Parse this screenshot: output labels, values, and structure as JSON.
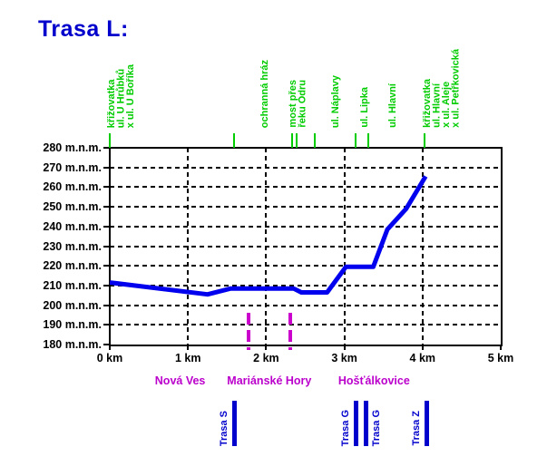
{
  "title": "Trasa L:",
  "colors": {
    "title_blue": "#0000CC",
    "profile_blue": "#0000EE",
    "route_marker_blue": "#0000CC",
    "annotation_green": "#00CC00",
    "boundary_magenta": "#CC00CC",
    "municipality_magenta": "#BB00CC",
    "axis_black": "#000000"
  },
  "chart_data": {
    "type": "line",
    "title": "Trasa L:",
    "xlabel": "km",
    "ylabel": "m.n.m.",
    "xlim": [
      0,
      5
    ],
    "ylim": [
      180,
      280
    ],
    "grid": "dashed",
    "y_axis": [
      {
        "value": 280,
        "label": "280 m.n.m."
      },
      {
        "value": 270,
        "label": "270 m.n.m."
      },
      {
        "value": 260,
        "label": "260 m.n.m."
      },
      {
        "value": 250,
        "label": "250 m.n.m."
      },
      {
        "value": 240,
        "label": "240 m.n.m."
      },
      {
        "value": 230,
        "label": "230 m.n.m."
      },
      {
        "value": 220,
        "label": "220 m.n.m."
      },
      {
        "value": 210,
        "label": "210 m.n.m."
      },
      {
        "value": 200,
        "label": "200 m.n.m."
      },
      {
        "value": 190,
        "label": "190 m.n.m."
      },
      {
        "value": 180,
        "label": "180 m.n.m."
      }
    ],
    "x_axis": [
      {
        "value": 0,
        "label": "0 km"
      },
      {
        "value": 1,
        "label": "1 km"
      },
      {
        "value": 2,
        "label": "2 km"
      },
      {
        "value": 3,
        "label": "3 km"
      },
      {
        "value": 4,
        "label": "4 km"
      },
      {
        "value": 5,
        "label": "5 km"
      }
    ],
    "series": [
      {
        "name": "elevation-profile",
        "x": [
          0,
          1.25,
          1.55,
          2.35,
          2.45,
          2.78,
          3.02,
          3.37,
          3.55,
          3.79,
          4.04
        ],
        "y": [
          211.5,
          205.5,
          208.5,
          208.5,
          206.5,
          206.5,
          219.5,
          219.5,
          238.5,
          249,
          265.5
        ]
      }
    ],
    "annotations": [
      {
        "label": "křižovatka\nul. U Hrůbků\nx ul. U Boříka",
        "ticks_km": [
          0.0
        ],
        "label_km": -0.03
      },
      {
        "label": "ochranná hráz",
        "ticks_km": [
          1.59
        ],
        "label_km": 1.93
      },
      {
        "label": "most přes\nřeku Odru",
        "ticks_km": [
          2.33,
          2.39
        ],
        "label_km": 2.28
      },
      {
        "label": "ul. Náplavy",
        "ticks_km": [
          2.62
        ],
        "label_km": 2.83
      },
      {
        "label": "ul. Lipka",
        "ticks_km": [
          3.14
        ],
        "label_km": 3.2
      },
      {
        "label": "ul. Hlavní",
        "ticks_km": [
          3.31
        ],
        "label_km": 3.56
      },
      {
        "label": "křižovatka\nul. Hlavní\nx ul. Aleje\nx ul. Petřkovická",
        "ticks_km": [
          4.03
        ],
        "label_km": 4.0
      }
    ],
    "municipality_boundaries_km": [
      1.78,
      2.31
    ],
    "municipalities": [
      {
        "name": "Nová Ves",
        "center_km": 0.9
      },
      {
        "name": "Mariánské Hory",
        "center_km": 2.04
      },
      {
        "name": "Hošťálkovice",
        "center_km": 3.38
      }
    ],
    "route_markers": [
      {
        "label": "Trasa S",
        "km": 1.59,
        "label_side": "left"
      },
      {
        "label": "Trasa G",
        "km": 3.15,
        "label_side": "left"
      },
      {
        "label": "Trasa G",
        "km": 3.28,
        "label_side": "right"
      },
      {
        "label": "Trasa Z",
        "km": 4.06,
        "label_side": "left"
      }
    ]
  }
}
